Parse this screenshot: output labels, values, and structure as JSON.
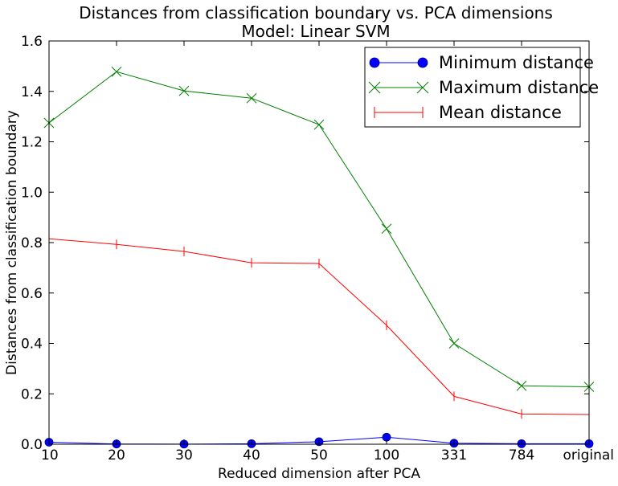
{
  "chart_data": {
    "type": "line",
    "title": "Distances from classification boundary vs. PCA dimensions",
    "subtitle": "Model: Linear SVM",
    "xlabel": "Reduced dimension after PCA",
    "ylabel": "Distances from classification boundary",
    "categories": [
      "10",
      "20",
      "30",
      "40",
      "50",
      "100",
      "331",
      "784",
      "original"
    ],
    "ylim": [
      0.0,
      1.6
    ],
    "yticks": [
      "0.0",
      "0.2",
      "0.4",
      "0.6",
      "0.8",
      "1.0",
      "1.2",
      "1.4",
      "1.6"
    ],
    "grid": false,
    "legend_position": "top-right",
    "series": [
      {
        "name": "Minimum distance",
        "color": "#0000ff",
        "marker": "circle",
        "values": [
          0.008,
          0.001,
          0.0005,
          0.002,
          0.01,
          0.028,
          0.004,
          0.002,
          0.002
        ]
      },
      {
        "name": "Maximum distance",
        "color": "#008000",
        "marker": "x",
        "values": [
          1.275,
          1.478,
          1.402,
          1.373,
          1.268,
          0.855,
          0.4,
          0.232,
          0.228
        ]
      },
      {
        "name": "Mean distance",
        "color": "#ff0000",
        "marker": "vline",
        "values": [
          0.815,
          0.793,
          0.765,
          0.72,
          0.717,
          0.472,
          0.19,
          0.12,
          0.118
        ]
      }
    ]
  }
}
